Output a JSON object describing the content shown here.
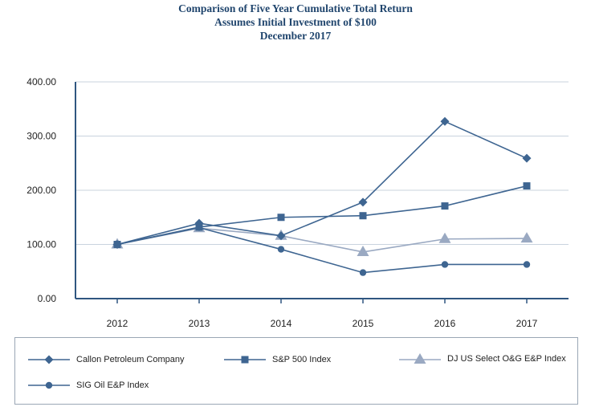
{
  "chart_data": {
    "type": "line",
    "title": "Comparison of Five Year Cumulative Total Return",
    "subtitle": [
      "Assumes Initial Investment of $100",
      "December 2017"
    ],
    "categories": [
      "2012",
      "2013",
      "2014",
      "2015",
      "2016",
      "2017"
    ],
    "y_ticks": [
      "400.00",
      "300.00",
      "200.00",
      "100.00",
      "0.00"
    ],
    "ylim": [
      0,
      400
    ],
    "grid": true,
    "legend_position": "bottom",
    "series": [
      {
        "name": "Callon Petroleum Company",
        "values": [
          100,
          139,
          116,
          178,
          327,
          259
        ],
        "marker": "diamond",
        "color": "#3e6591"
      },
      {
        "name": "S&P 500 Index",
        "values": [
          100,
          132,
          150,
          153,
          171,
          208
        ],
        "marker": "square",
        "color": "#3e6591"
      },
      {
        "name": "DJ US Select O&G E&P Index",
        "values": [
          100,
          130,
          116,
          86,
          110,
          111
        ],
        "marker": "triangle",
        "color": "#9aa9c2"
      },
      {
        "name": "SIG Oil E&P Index",
        "values": [
          100,
          131,
          91,
          48,
          63,
          63
        ],
        "marker": "circle",
        "color": "#3e6591"
      }
    ]
  }
}
